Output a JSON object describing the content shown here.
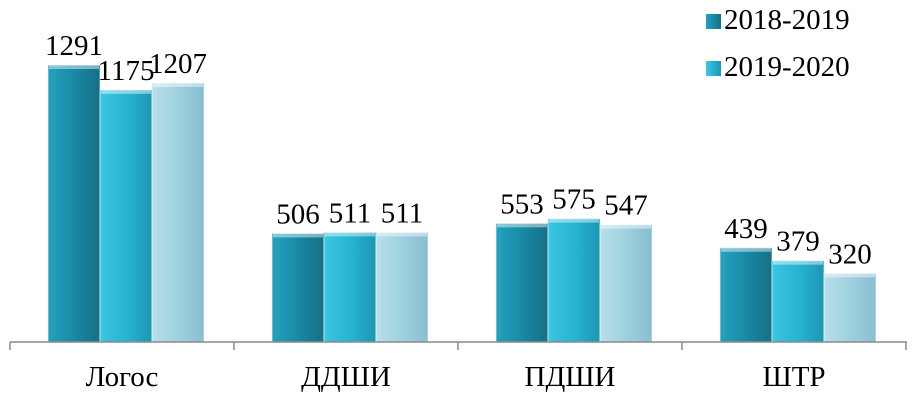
{
  "chart_data": {
    "type": "bar",
    "categories": [
      "Логос",
      "ДДШИ",
      "ПДШИ",
      "ШТР"
    ],
    "series": [
      {
        "name": "2018-2019",
        "values": [
          1291,
          506,
          553,
          439
        ],
        "color": "#1a8aa5"
      },
      {
        "name": "2019-2020",
        "values": [
          1175,
          511,
          575,
          379
        ],
        "color": "#27b4d3"
      },
      {
        "values": [
          1207,
          511,
          547,
          320
        ],
        "color": "#9fd0df"
      }
    ],
    "title": "",
    "xlabel": "",
    "ylabel": "",
    "ylim": [
      0,
      1400
    ],
    "grid": false,
    "legend_position": "top-right"
  }
}
